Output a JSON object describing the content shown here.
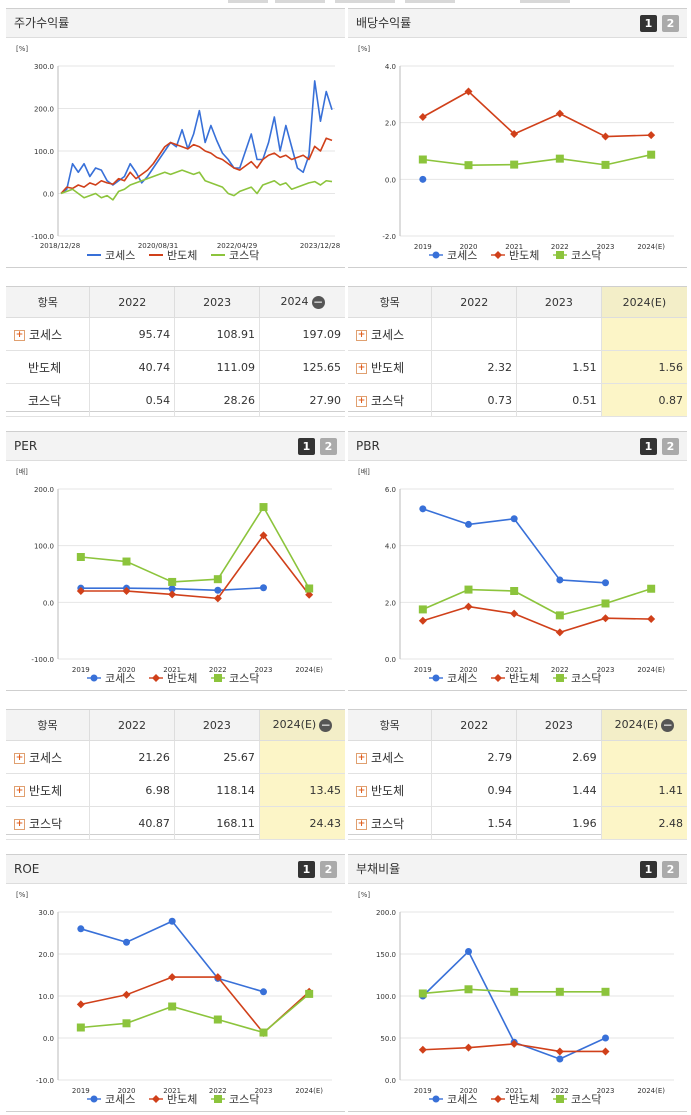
{
  "legend": {
    "s1": "코세스",
    "s2": "반도체",
    "s3": "코스닥"
  },
  "colors": {
    "s1": "#3870d8",
    "s2": "#d0401a",
    "s3": "#8cc43c"
  },
  "charts": [
    {
      "title": "주가수익률",
      "unit": "[%]",
      "type": "line",
      "tabs": false,
      "ylim": [
        -100,
        300
      ],
      "yticks": [
        "300.0",
        "200.0",
        "100.0",
        "0.0",
        "-100.0"
      ],
      "xticks": [
        "2018/12/28",
        "2020/08/31",
        "2022/04/29",
        "2023/12/28"
      ],
      "series": [
        {
          "key": "s1",
          "values": [
            0,
            10,
            70,
            50,
            70,
            40,
            60,
            55,
            30,
            20,
            30,
            40,
            70,
            50,
            25,
            40,
            60,
            80,
            100,
            120,
            110,
            150,
            105,
            140,
            195,
            120,
            160,
            125,
            95,
            80,
            60,
            60,
            100,
            140,
            80,
            80,
            120,
            180,
            100,
            160,
            110,
            60,
            50,
            90,
            265,
            170,
            240,
            197
          ]
        },
        {
          "key": "s2",
          "values": [
            0,
            15,
            12,
            20,
            15,
            25,
            20,
            30,
            25,
            22,
            35,
            30,
            50,
            35,
            45,
            55,
            70,
            90,
            110,
            120,
            115,
            110,
            105,
            115,
            110,
            100,
            95,
            85,
            80,
            70,
            60,
            55,
            65,
            75,
            60,
            80,
            90,
            95,
            85,
            90,
            80,
            85,
            90,
            80,
            111,
            100,
            130,
            125
          ]
        },
        {
          "key": "s3",
          "values": [
            0,
            5,
            10,
            0,
            -10,
            -5,
            0,
            -10,
            -5,
            -15,
            5,
            10,
            20,
            25,
            30,
            35,
            40,
            45,
            50,
            45,
            50,
            55,
            50,
            45,
            50,
            30,
            25,
            20,
            15,
            0,
            -5,
            5,
            10,
            15,
            0,
            20,
            25,
            30,
            20,
            25,
            10,
            15,
            20,
            25,
            28,
            20,
            30,
            28
          ]
        }
      ]
    },
    {
      "title": "배당수익률",
      "unit": "[%]",
      "type": "points",
      "tabs": true,
      "ylim": [
        -2,
        4
      ],
      "yticks": [
        "4.0",
        "2.0",
        "0.0",
        "-2.0"
      ],
      "xticks": [
        "2019",
        "2020",
        "2021",
        "2022",
        "2023",
        "2024(E)"
      ],
      "series": [
        {
          "key": "s1",
          "values": [
            0.0,
            null,
            null,
            null,
            null,
            null
          ]
        },
        {
          "key": "s2",
          "values": [
            2.2,
            3.1,
            1.6,
            2.32,
            1.51,
            1.56
          ]
        },
        {
          "key": "s3",
          "values": [
            0.7,
            0.5,
            0.52,
            0.73,
            0.51,
            0.87
          ]
        }
      ]
    },
    {
      "title": "PER",
      "unit": "[배]",
      "type": "points",
      "tabs": true,
      "ylim": [
        -100,
        200
      ],
      "yticks": [
        "200.0",
        "100.0",
        "0.0",
        "-100.0"
      ],
      "xticks": [
        "2019",
        "2020",
        "2021",
        "2022",
        "2023",
        "2024(E)"
      ],
      "series": [
        {
          "key": "s1",
          "values": [
            25,
            25,
            24,
            21.26,
            25.67,
            null
          ]
        },
        {
          "key": "s2",
          "values": [
            20,
            20,
            14,
            6.98,
            118.14,
            13.45
          ]
        },
        {
          "key": "s3",
          "values": [
            80,
            72,
            36,
            40.87,
            168.11,
            24.43
          ]
        }
      ]
    },
    {
      "title": "PBR",
      "unit": "[배]",
      "type": "points",
      "tabs": true,
      "ylim": [
        0,
        6
      ],
      "yticks": [
        "6.0",
        "4.0",
        "2.0",
        "0.0"
      ],
      "xticks": [
        "2019",
        "2020",
        "2021",
        "2022",
        "2023",
        "2024(E)"
      ],
      "series": [
        {
          "key": "s1",
          "values": [
            5.3,
            4.75,
            4.95,
            2.79,
            2.69,
            null
          ]
        },
        {
          "key": "s2",
          "values": [
            1.35,
            1.85,
            1.6,
            0.94,
            1.44,
            1.41
          ]
        },
        {
          "key": "s3",
          "values": [
            1.75,
            2.45,
            2.4,
            1.54,
            1.96,
            2.48
          ]
        }
      ]
    },
    {
      "title": "ROE",
      "unit": "[%]",
      "type": "points",
      "tabs": true,
      "ylim": [
        -10,
        30
      ],
      "yticks": [
        "30.0",
        "20.0",
        "10.0",
        "0.0",
        "-10.0"
      ],
      "xticks": [
        "2019",
        "2020",
        "2021",
        "2022",
        "2023",
        "2024(E)"
      ],
      "series": [
        {
          "key": "s1",
          "values": [
            26,
            22.8,
            27.8,
            14.2,
            11,
            null
          ]
        },
        {
          "key": "s2",
          "values": [
            8,
            10.3,
            14.5,
            14.5,
            1.2,
            11
          ]
        },
        {
          "key": "s3",
          "values": [
            2.5,
            3.5,
            7.5,
            4.4,
            1.3,
            10.5
          ]
        }
      ]
    },
    {
      "title": "부채비율",
      "unit": "[%]",
      "type": "points",
      "tabs": true,
      "ylim": [
        0,
        200
      ],
      "yticks": [
        "200.0",
        "150.0",
        "100.0",
        "50.0",
        "0.0"
      ],
      "xticks": [
        "2019",
        "2020",
        "2021",
        "2022",
        "2023",
        "2024(E)"
      ],
      "series": [
        {
          "key": "s1",
          "values": [
            100,
            153,
            45,
            25,
            50,
            null
          ]
        },
        {
          "key": "s2",
          "values": [
            36,
            38.5,
            43,
            34,
            34,
            null
          ]
        },
        {
          "key": "s3",
          "values": [
            103,
            108,
            105,
            105,
            105,
            null
          ]
        }
      ]
    }
  ],
  "tables": [
    {
      "header": [
        "항목",
        "2022",
        "2023",
        "2024"
      ],
      "minus": true,
      "hlcol": false,
      "rows": [
        {
          "label": "코세스",
          "plus": true,
          "cells": [
            "95.74",
            "108.91",
            "197.09"
          ]
        },
        {
          "label": "반도체",
          "plus": false,
          "cells": [
            "40.74",
            "111.09",
            "125.65"
          ]
        },
        {
          "label": "코스닥",
          "plus": false,
          "cells": [
            "0.54",
            "28.26",
            "27.90"
          ]
        }
      ]
    },
    {
      "header": [
        "항목",
        "2022",
        "2023",
        "2024(E)"
      ],
      "minus": false,
      "hlcol": true,
      "rows": [
        {
          "label": "코세스",
          "plus": true,
          "cells": [
            "",
            "",
            ""
          ]
        },
        {
          "label": "반도체",
          "plus": true,
          "cells": [
            "2.32",
            "1.51",
            "1.56"
          ]
        },
        {
          "label": "코스닥",
          "plus": true,
          "cells": [
            "0.73",
            "0.51",
            "0.87"
          ]
        }
      ]
    },
    {
      "header": [
        "항목",
        "2022",
        "2023",
        "2024(E)"
      ],
      "minus": true,
      "hlcol": true,
      "rows": [
        {
          "label": "코세스",
          "plus": true,
          "cells": [
            "21.26",
            "25.67",
            ""
          ]
        },
        {
          "label": "반도체",
          "plus": true,
          "cells": [
            "6.98",
            "118.14",
            "13.45"
          ]
        },
        {
          "label": "코스닥",
          "plus": true,
          "cells": [
            "40.87",
            "168.11",
            "24.43"
          ]
        }
      ]
    },
    {
      "header": [
        "항목",
        "2022",
        "2023",
        "2024(E)"
      ],
      "minus": true,
      "hlcol": true,
      "rows": [
        {
          "label": "코세스",
          "plus": true,
          "cells": [
            "2.79",
            "2.69",
            ""
          ]
        },
        {
          "label": "반도체",
          "plus": true,
          "cells": [
            "0.94",
            "1.44",
            "1.41"
          ]
        },
        {
          "label": "코스닥",
          "plus": true,
          "cells": [
            "1.54",
            "1.96",
            "2.48"
          ]
        }
      ]
    }
  ],
  "tab_labels": [
    "1",
    "2"
  ]
}
